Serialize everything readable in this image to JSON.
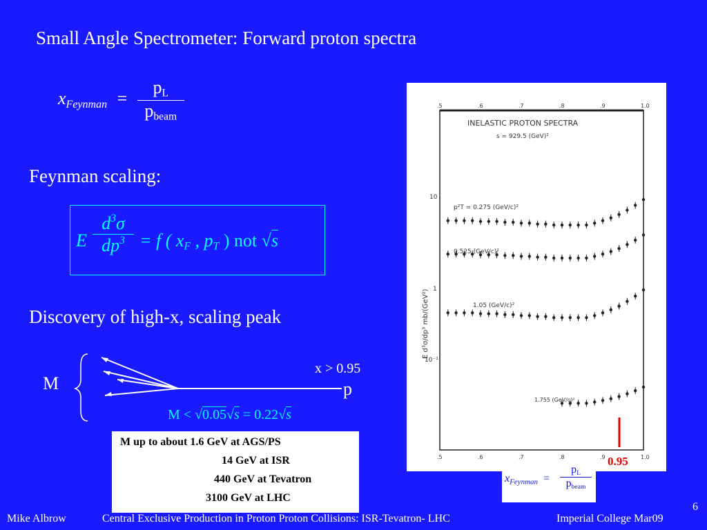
{
  "slide": {
    "title": "Small Angle Spectrometer: Forward proton spectra",
    "page_number": "6"
  },
  "feynman_def": {
    "lhs_symbol": "x",
    "lhs_sub": "Feynman",
    "equals": "=",
    "num": "p",
    "num_sub": "L",
    "den": "p",
    "den_sub": "beam"
  },
  "scaling": {
    "heading": "Feynman scaling:",
    "E": "E",
    "num_d": "d",
    "num_exp": "3",
    "num_sigma": "σ",
    "den_dp": "dp",
    "den_exp": "3",
    "rhs": "= f ( x",
    "xF_sub": "F",
    "comma": ", p",
    "pT_sub": "T",
    "close": ") not",
    "sqrt_arg": "s"
  },
  "discovery": {
    "heading": "Discovery of high-x, scaling peak",
    "M_label": "M",
    "x_cond": "x > 0.95",
    "p_label": "p",
    "mass_relation_prefix": "M <",
    "mass_sqrt1": "0.05",
    "mass_s1": "s",
    "mass_eq": "= 0.22",
    "mass_s2": "s"
  },
  "notes": {
    "line1": "M up to about 1.6 GeV at AGS/PS",
    "line2": "14 GeV at ISR",
    "line3": "440 GeV at Tevatron",
    "line4": "3100 GeV at LHC"
  },
  "figure": {
    "header_line1": "INELASTIC  PROTON  SPECTRA",
    "header_line2": "s = 929.5 (GeV)²",
    "ylabel": "E d³σ/dp³  mb/(GeV²)",
    "top_ticks": [
      ".5",
      ".6",
      ".7",
      ".8",
      ".9",
      "1.0"
    ],
    "bottom_ticks": [
      ".5",
      ".6",
      ".7",
      ".8",
      ".9",
      "1.0"
    ],
    "y_ticks": [
      "10",
      "1",
      "10⁻¹"
    ],
    "curve_labels": [
      "p²T = 0.275 (GeV/c)²",
      "0.525 (GeV/c)²",
      "1.05 (GeV/c)²",
      "1.755 (GeV/c)²"
    ],
    "marker_value": "0.95",
    "marker_color": "#e00000",
    "curve_points": [
      {
        "x": [
          0.52,
          0.54,
          0.56,
          0.58,
          0.6,
          0.62,
          0.64,
          0.66,
          0.68,
          0.7,
          0.72,
          0.74,
          0.76,
          0.78,
          0.8,
          0.82,
          0.84,
          0.86,
          0.88,
          0.9,
          0.92,
          0.94,
          0.96,
          0.98,
          1.0
        ],
        "y": [
          2.0,
          2.0,
          2.0,
          2.0,
          1.9,
          1.9,
          1.9,
          1.8,
          1.8,
          1.7,
          1.7,
          1.6,
          1.6,
          1.5,
          1.5,
          1.5,
          1.5,
          1.5,
          1.7,
          2.0,
          2.4,
          3.0,
          4.0,
          5.5,
          8.0
        ]
      }
    ]
  },
  "feynman_small": {
    "lhs_symbol": "x",
    "lhs_sub": "Feynman",
    "equals": "=",
    "num": "p",
    "num_sub": "L",
    "den": "p",
    "den_sub": "beam"
  },
  "footer": {
    "author": "Mike Albrow",
    "talk": "Central Exclusive Production in Proton Proton Collisions: ISR-Tevatron- LHC",
    "venue": "Imperial College Mar09"
  }
}
